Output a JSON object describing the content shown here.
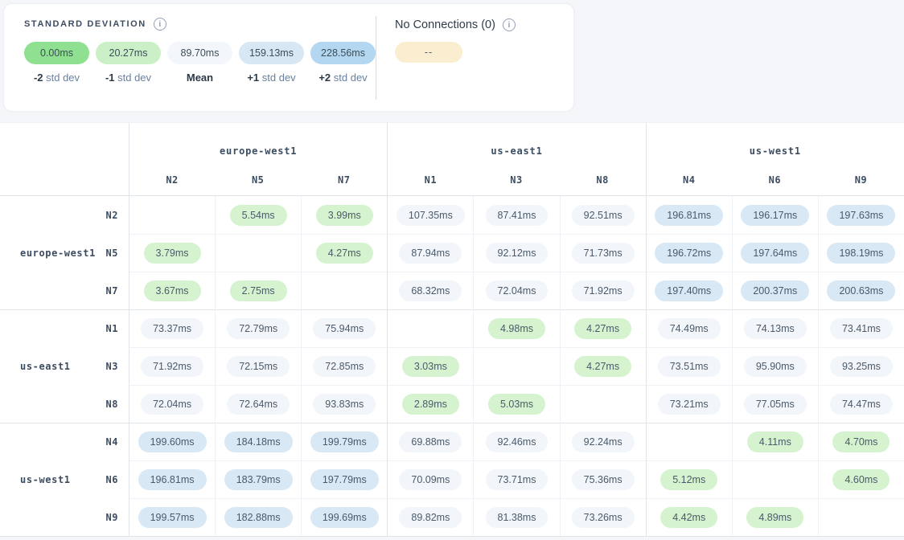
{
  "legend": {
    "title": "STANDARD DEVIATION",
    "items": [
      {
        "value": "0.00ms",
        "bold": "-2",
        "rest": "std dev",
        "color": "#90e092"
      },
      {
        "value": "20.27ms",
        "bold": "-1",
        "rest": "std dev",
        "color": "#cbf0c8"
      },
      {
        "value": "89.70ms",
        "bold": "Mean",
        "rest": "",
        "color": "#f3f6fa"
      },
      {
        "value": "159.13ms",
        "bold": "+1",
        "rest": "std dev",
        "color": "#d7e7f4"
      },
      {
        "value": "228.56ms",
        "bold": "+2",
        "rest": "std dev",
        "color": "#b3d7f1"
      }
    ]
  },
  "no_connections": {
    "title": "No Connections (0)",
    "pill": "--",
    "pill_color": "#fbedcf"
  },
  "matrix": {
    "column_groups": [
      {
        "name": "europe-west1",
        "nodes": [
          "N2",
          "N5",
          "N7"
        ]
      },
      {
        "name": "us-east1",
        "nodes": [
          "N1",
          "N3",
          "N8"
        ]
      },
      {
        "name": "us-west1",
        "nodes": [
          "N4",
          "N6",
          "N9"
        ]
      }
    ],
    "row_groups": [
      {
        "name": "europe-west1",
        "rows": [
          {
            "node": "N2",
            "cells": [
              {
                "t": "",
                "c": "empty"
              },
              {
                "t": "5.54ms",
                "c": "green"
              },
              {
                "t": "3.99ms",
                "c": "green"
              },
              {
                "t": "107.35ms",
                "c": "gray"
              },
              {
                "t": "87.41ms",
                "c": "gray"
              },
              {
                "t": "92.51ms",
                "c": "gray"
              },
              {
                "t": "196.81ms",
                "c": "blue"
              },
              {
                "t": "196.17ms",
                "c": "blue"
              },
              {
                "t": "197.63ms",
                "c": "blue"
              }
            ]
          },
          {
            "node": "N5",
            "cells": [
              {
                "t": "3.79ms",
                "c": "green"
              },
              {
                "t": "",
                "c": "empty"
              },
              {
                "t": "4.27ms",
                "c": "green"
              },
              {
                "t": "87.94ms",
                "c": "gray"
              },
              {
                "t": "92.12ms",
                "c": "gray"
              },
              {
                "t": "71.73ms",
                "c": "gray"
              },
              {
                "t": "196.72ms",
                "c": "blue"
              },
              {
                "t": "197.64ms",
                "c": "blue"
              },
              {
                "t": "198.19ms",
                "c": "blue"
              }
            ]
          },
          {
            "node": "N7",
            "cells": [
              {
                "t": "3.67ms",
                "c": "green"
              },
              {
                "t": "2.75ms",
                "c": "green"
              },
              {
                "t": "",
                "c": "empty"
              },
              {
                "t": "68.32ms",
                "c": "gray"
              },
              {
                "t": "72.04ms",
                "c": "gray"
              },
              {
                "t": "71.92ms",
                "c": "gray"
              },
              {
                "t": "197.40ms",
                "c": "blue"
              },
              {
                "t": "200.37ms",
                "c": "blue"
              },
              {
                "t": "200.63ms",
                "c": "blue"
              }
            ]
          }
        ]
      },
      {
        "name": "us-east1",
        "rows": [
          {
            "node": "N1",
            "cells": [
              {
                "t": "73.37ms",
                "c": "gray"
              },
              {
                "t": "72.79ms",
                "c": "gray"
              },
              {
                "t": "75.94ms",
                "c": "gray"
              },
              {
                "t": "",
                "c": "empty"
              },
              {
                "t": "4.98ms",
                "c": "green"
              },
              {
                "t": "4.27ms",
                "c": "green"
              },
              {
                "t": "74.49ms",
                "c": "gray"
              },
              {
                "t": "74.13ms",
                "c": "gray"
              },
              {
                "t": "73.41ms",
                "c": "gray"
              }
            ]
          },
          {
            "node": "N3",
            "cells": [
              {
                "t": "71.92ms",
                "c": "gray"
              },
              {
                "t": "72.15ms",
                "c": "gray"
              },
              {
                "t": "72.85ms",
                "c": "gray"
              },
              {
                "t": "3.03ms",
                "c": "green"
              },
              {
                "t": "",
                "c": "empty"
              },
              {
                "t": "4.27ms",
                "c": "green"
              },
              {
                "t": "73.51ms",
                "c": "gray"
              },
              {
                "t": "95.90ms",
                "c": "gray"
              },
              {
                "t": "93.25ms",
                "c": "gray"
              }
            ]
          },
          {
            "node": "N8",
            "cells": [
              {
                "t": "72.04ms",
                "c": "gray"
              },
              {
                "t": "72.64ms",
                "c": "gray"
              },
              {
                "t": "93.83ms",
                "c": "gray"
              },
              {
                "t": "2.89ms",
                "c": "green"
              },
              {
                "t": "5.03ms",
                "c": "green"
              },
              {
                "t": "",
                "c": "empty"
              },
              {
                "t": "73.21ms",
                "c": "gray"
              },
              {
                "t": "77.05ms",
                "c": "gray"
              },
              {
                "t": "74.47ms",
                "c": "gray"
              }
            ]
          }
        ]
      },
      {
        "name": "us-west1",
        "rows": [
          {
            "node": "N4",
            "cells": [
              {
                "t": "199.60ms",
                "c": "blue"
              },
              {
                "t": "184.18ms",
                "c": "blue"
              },
              {
                "t": "199.79ms",
                "c": "blue"
              },
              {
                "t": "69.88ms",
                "c": "gray"
              },
              {
                "t": "92.46ms",
                "c": "gray"
              },
              {
                "t": "92.24ms",
                "c": "gray"
              },
              {
                "t": "",
                "c": "empty"
              },
              {
                "t": "4.11ms",
                "c": "green"
              },
              {
                "t": "4.70ms",
                "c": "green"
              }
            ]
          },
          {
            "node": "N6",
            "cells": [
              {
                "t": "196.81ms",
                "c": "blue"
              },
              {
                "t": "183.79ms",
                "c": "blue"
              },
              {
                "t": "197.79ms",
                "c": "blue"
              },
              {
                "t": "70.09ms",
                "c": "gray"
              },
              {
                "t": "73.71ms",
                "c": "gray"
              },
              {
                "t": "75.36ms",
                "c": "gray"
              },
              {
                "t": "5.12ms",
                "c": "green"
              },
              {
                "t": "",
                "c": "empty"
              },
              {
                "t": "4.60ms",
                "c": "green"
              }
            ]
          },
          {
            "node": "N9",
            "cells": [
              {
                "t": "199.57ms",
                "c": "blue"
              },
              {
                "t": "182.88ms",
                "c": "blue"
              },
              {
                "t": "199.69ms",
                "c": "blue"
              },
              {
                "t": "89.82ms",
                "c": "gray"
              },
              {
                "t": "81.38ms",
                "c": "gray"
              },
              {
                "t": "73.26ms",
                "c": "gray"
              },
              {
                "t": "4.42ms",
                "c": "green"
              },
              {
                "t": "4.89ms",
                "c": "green"
              },
              {
                "t": "",
                "c": "empty"
              }
            ]
          }
        ]
      }
    ]
  },
  "colors": {
    "tone-green": "#d6f3d0",
    "tone-gray": "#f2f5f9",
    "tone-blue": "#d8e8f5",
    "border-inner": "#eef1f5",
    "border-group": "#dee4ea",
    "text-dark": "#3c4c61",
    "text-cell": "#4a5a6b",
    "text-muted": "#68809e",
    "page-bg": "#f4f6f9"
  }
}
